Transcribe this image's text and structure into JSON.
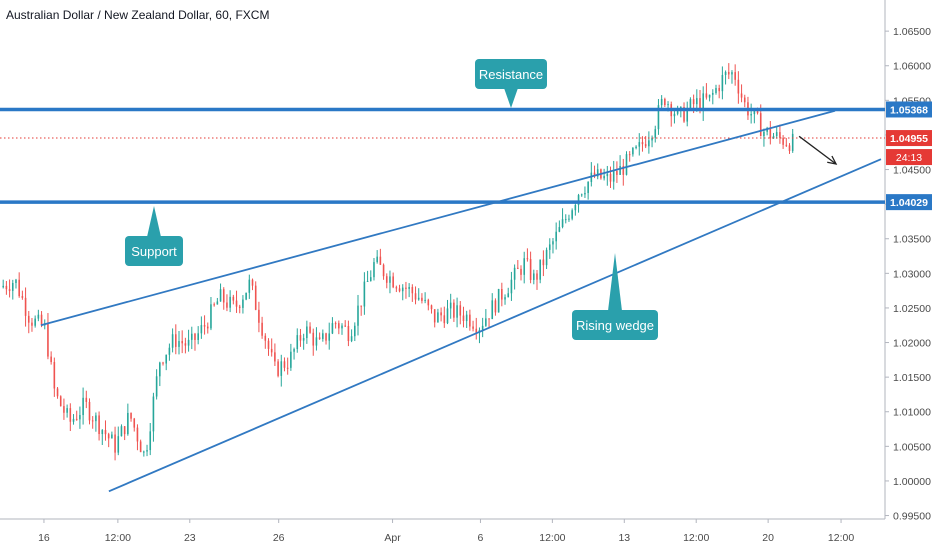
{
  "chart_data": {
    "type": "candlestick",
    "title": "Australian Dollar / New Zealand Dollar, 60, FXCM",
    "ylim": [
      0.9945,
      1.0695
    ],
    "y_ticks": [
      1.065,
      1.06,
      1.055,
      1.05,
      1.045,
      1.04,
      1.035,
      1.03,
      1.025,
      1.02,
      1.015,
      1.01,
      1.005,
      1.0,
      0.995
    ],
    "y_tick_labels": [
      "1.06500",
      "1.06000",
      "1.05500",
      "1.05000",
      "1.04500",
      "1.04000",
      "1.03500",
      "1.03000",
      "1.02500",
      "1.02000",
      "1.01500",
      "1.01000",
      "1.00500",
      "1.00000",
      "0.99500"
    ],
    "x_ticks": [
      {
        "label": "16",
        "at": 4.4
      },
      {
        "label": "12:00",
        "at": 11.8
      },
      {
        "label": "23",
        "at": 19.0
      },
      {
        "label": "26",
        "at": 27.9
      },
      {
        "label": "Apr",
        "at": 39.3
      },
      {
        "label": "6",
        "at": 48.1
      },
      {
        "label": "12:00",
        "at": 55.3
      },
      {
        "label": "13",
        "at": 62.5
      },
      {
        "label": "12:00",
        "at": 69.7
      },
      {
        "label": "20",
        "at": 76.9
      },
      {
        "label": "12:00",
        "at": 84.2
      }
    ],
    "x_range": [
      0,
      88.6
    ],
    "close_path": [
      [
        0,
        1.028
      ],
      [
        1.5,
        1.029
      ],
      [
        3,
        1.0235
      ],
      [
        4.5,
        1.022
      ],
      [
        5.5,
        1.0125
      ],
      [
        7,
        1.0085
      ],
      [
        8.5,
        1.011
      ],
      [
        10,
        1.008
      ],
      [
        11.5,
        1.005
      ],
      [
        13,
        1.0095
      ],
      [
        14.5,
        1.0035
      ],
      [
        16,
        1.0175
      ],
      [
        17.5,
        1.0205
      ],
      [
        19,
        1.0195
      ],
      [
        20.5,
        1.0225
      ],
      [
        22,
        1.0265
      ],
      [
        23.5,
        1.025
      ],
      [
        25,
        1.0285
      ],
      [
        26.5,
        1.021
      ],
      [
        27.5,
        1.016
      ],
      [
        29,
        1.0175
      ],
      [
        30.5,
        1.022
      ],
      [
        32,
        1.0195
      ],
      [
        33.5,
        1.023
      ],
      [
        35,
        1.0215
      ],
      [
        36.5,
        1.0275
      ],
      [
        37.5,
        1.0315
      ],
      [
        39,
        1.0295
      ],
      [
        40.5,
        1.028
      ],
      [
        42,
        1.0265
      ],
      [
        43.5,
        1.0235
      ],
      [
        45,
        1.0245
      ],
      [
        46.5,
        1.024
      ],
      [
        48,
        1.0225
      ],
      [
        49.5,
        1.0255
      ],
      [
        51,
        1.0285
      ],
      [
        52.5,
        1.0315
      ],
      [
        53.5,
        1.029
      ],
      [
        55,
        1.0335
      ],
      [
        56.5,
        1.0375
      ],
      [
        58,
        1.042
      ],
      [
        59.5,
        1.044
      ],
      [
        61,
        1.0435
      ],
      [
        62.5,
        1.0455
      ],
      [
        64,
        1.048
      ],
      [
        65.5,
        1.0515
      ],
      [
        66.5,
        1.0555
      ],
      [
        68,
        1.0525
      ],
      [
        69.5,
        1.0545
      ],
      [
        71,
        1.055
      ],
      [
        72.5,
        1.0585
      ],
      [
        73.5,
        1.059
      ],
      [
        74.5,
        1.0545
      ],
      [
        75.5,
        1.0525
      ],
      [
        76.5,
        1.0505
      ],
      [
        78,
        1.0495
      ],
      [
        79.5,
        1.0488
      ]
    ],
    "resistance": 1.05368,
    "support": 1.04029,
    "current_price": 1.04955,
    "countdown": "24:13",
    "wedge_upper": [
      [
        4.1,
        1.0225
      ],
      [
        83.6,
        1.0535
      ]
    ],
    "wedge_lower": [
      [
        10.9,
        0.9985
      ],
      [
        88.2,
        1.0465
      ]
    ],
    "projection_arrow": [
      [
        80.0,
        1.0498
      ],
      [
        83.7,
        1.0458
      ]
    ],
    "annotations": [
      {
        "text": "Resistance",
        "points_to": "resistance"
      },
      {
        "text": "Support",
        "points_to": "support"
      },
      {
        "text": "Rising wedge",
        "points_to": "wedge_lower"
      }
    ],
    "colors": {
      "up": "#26a69a",
      "down": "#ef5350",
      "level": "#2a78c6",
      "wedge": "#3179c2",
      "callout": "#2aa0ac",
      "price_line": "#e53935"
    },
    "grid": false
  }
}
